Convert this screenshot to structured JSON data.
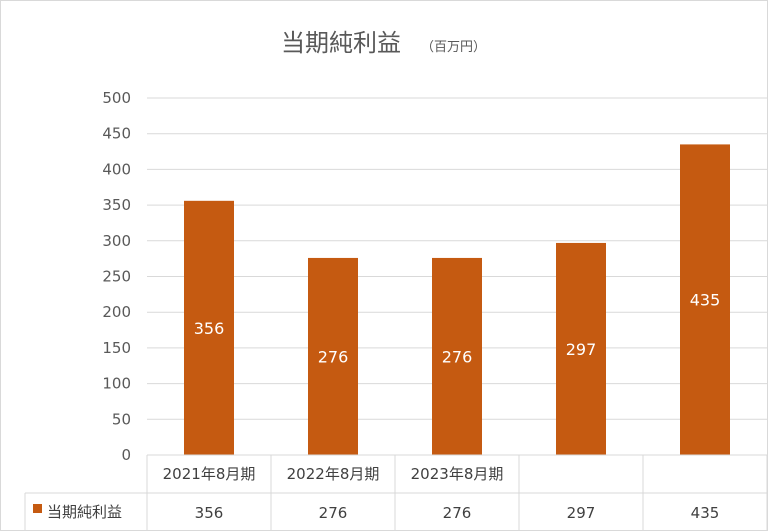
{
  "chart_data": {
    "type": "bar",
    "title": "当期純利益",
    "unit": "（百万円）",
    "categories": [
      "2021年8月期",
      "2022年8月期",
      "2023年8月期",
      "",
      ""
    ],
    "series": [
      {
        "name": "当期純利益",
        "values": [
          356,
          276,
          276,
          297,
          435
        ],
        "color": "#c55a11"
      }
    ],
    "ylim": [
      0,
      500
    ],
    "yticks": [
      0,
      50,
      100,
      150,
      200,
      250,
      300,
      350,
      400,
      450,
      500
    ],
    "grid": true,
    "data_labels": true,
    "data_table": true
  }
}
